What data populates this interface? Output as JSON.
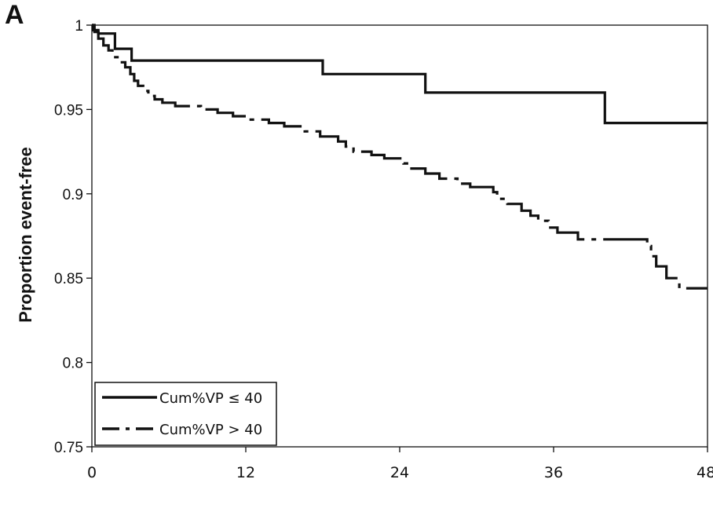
{
  "panel_letter": "A",
  "chart_data": {
    "type": "line",
    "title": "",
    "xlabel": "",
    "ylabel": "Proportion event-free",
    "xlim": [
      0,
      48
    ],
    "ylim": [
      0.75,
      1
    ],
    "x_ticks": [
      "0",
      "12",
      "24",
      "36",
      "48"
    ],
    "y_ticks": [
      "0.75",
      "0.8",
      "0.85",
      "0.9",
      "0.95",
      "1"
    ],
    "grid": false,
    "legend_position": "bottom-left",
    "series": [
      {
        "name": "Cum%VP ≤ 40",
        "style": "solid",
        "step": true,
        "points": [
          [
            0,
            1.0
          ],
          [
            0.1,
            0.997
          ],
          [
            0.5,
            0.995
          ],
          [
            1.8,
            0.986
          ],
          [
            3.1,
            0.979
          ],
          [
            18.0,
            0.971
          ],
          [
            26.0,
            0.96
          ],
          [
            40.0,
            0.942
          ],
          [
            48.0,
            0.942
          ]
        ]
      },
      {
        "name": "Cum%VP > 40",
        "style": "dash-dot",
        "step": true,
        "points": [
          [
            0,
            1.0
          ],
          [
            0.2,
            0.996
          ],
          [
            0.5,
            0.992
          ],
          [
            0.9,
            0.988
          ],
          [
            1.3,
            0.985
          ],
          [
            1.6,
            0.981
          ],
          [
            2.1,
            0.978
          ],
          [
            2.6,
            0.975
          ],
          [
            3.0,
            0.971
          ],
          [
            3.3,
            0.967
          ],
          [
            3.6,
            0.964
          ],
          [
            4.0,
            0.961
          ],
          [
            4.4,
            0.958
          ],
          [
            4.9,
            0.956
          ],
          [
            5.5,
            0.954
          ],
          [
            6.5,
            0.952
          ],
          [
            8.5,
            0.95
          ],
          [
            9.8,
            0.948
          ],
          [
            11.0,
            0.946
          ],
          [
            12.2,
            0.944
          ],
          [
            13.8,
            0.942
          ],
          [
            15.0,
            0.94
          ],
          [
            16.6,
            0.937
          ],
          [
            17.8,
            0.934
          ],
          [
            19.2,
            0.931
          ],
          [
            19.8,
            0.928
          ],
          [
            20.4,
            0.925
          ],
          [
            21.8,
            0.923
          ],
          [
            22.8,
            0.921
          ],
          [
            24.3,
            0.918
          ],
          [
            24.7,
            0.915
          ],
          [
            26.0,
            0.912
          ],
          [
            27.1,
            0.909
          ],
          [
            28.5,
            0.906
          ],
          [
            29.5,
            0.904
          ],
          [
            31.3,
            0.901
          ],
          [
            31.6,
            0.897
          ],
          [
            32.4,
            0.894
          ],
          [
            33.5,
            0.89
          ],
          [
            34.2,
            0.887
          ],
          [
            34.8,
            0.884
          ],
          [
            35.6,
            0.88
          ],
          [
            36.3,
            0.877
          ],
          [
            37.9,
            0.873
          ],
          [
            43.3,
            0.869
          ],
          [
            43.6,
            0.863
          ],
          [
            44.0,
            0.857
          ],
          [
            44.8,
            0.85
          ],
          [
            45.8,
            0.844
          ],
          [
            48.0,
            0.844
          ]
        ]
      }
    ]
  },
  "colors": {
    "line": "#111111",
    "background": "#ffffff"
  }
}
